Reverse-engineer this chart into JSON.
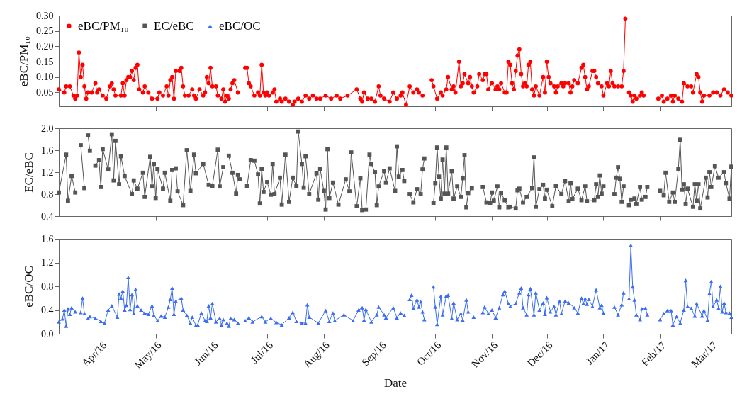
{
  "chart_data": [
    {
      "type": "line",
      "ylabel": "eBC/PM₁₀",
      "xlim": [
        "2016-03-09",
        "2017-03-12"
      ],
      "ylim": [
        0.005,
        0.3
      ],
      "xticks": [
        {
          "value": "2016-04-01",
          "label": null
        },
        {
          "value": "2016-05-01",
          "label": null
        },
        {
          "value": "2016-06-01",
          "label": null
        },
        {
          "value": "2016-07-01",
          "label": null
        },
        {
          "value": "2016-08-01",
          "label": null
        },
        {
          "value": "2016-09-01",
          "label": null
        },
        {
          "value": "2016-10-01",
          "label": null
        },
        {
          "value": "2016-11-01",
          "label": null
        },
        {
          "value": "2016-12-01",
          "label": null
        },
        {
          "value": "2017-01-01",
          "label": null
        },
        {
          "value": "2017-02-01",
          "label": null
        },
        {
          "value": "2017-03-01",
          "label": null
        }
      ],
      "yticks": [
        0.05,
        {
          "value": 0.1,
          "label": "0.10"
        },
        0.15,
        {
          "value": 0.2,
          "label": "0.20"
        },
        0.25,
        {
          "value": 0.3,
          "label": "0.30"
        }
      ],
      "tick_labels": "y",
      "legend": "top left",
      "marker": "circle",
      "line_style": "solid",
      "series": [
        {
          "name": "eBC/PM₁₀",
          "color": "#ff0000",
          "x": [
            "2016-03-09",
            "2016-03-12",
            "2016-03-13",
            "2016-03-15",
            "2016-03-17",
            "2016-03-18",
            "2016-03-19",
            "2016-03-20",
            "2016-03-21",
            "2016-03-22",
            "2016-03-23",
            "2016-03-24",
            "2016-03-25",
            "2016-03-27",
            "2016-03-29",
            "2016-03-30",
            "2016-03-31",
            "2016-04-02",
            "2016-04-04",
            "2016-04-06",
            "2016-04-07",
            "2016-04-08",
            "2016-04-09",
            "2016-04-12",
            "2016-04-13",
            "2016-04-14",
            "2016-04-15",
            "2016-04-16",
            "2016-04-17",
            "2016-04-18",
            "2016-04-19",
            "2016-04-20",
            "2016-04-21",
            "2016-04-22",
            "2016-04-24",
            "2016-04-25",
            "2016-04-27",
            "2016-04-29",
            "2016-05-02",
            "2016-05-03",
            "2016-05-05",
            "2016-05-07",
            "2016-05-08",
            "2016-05-09",
            "2016-05-10",
            "2016-05-11",
            "2016-05-12",
            "2016-05-14",
            "2016-05-15",
            "2016-05-16",
            "2016-05-17",
            "2016-05-19",
            "2016-05-21",
            "2016-05-22",
            "2016-05-23",
            "2016-05-25",
            "2016-05-27",
            "2016-05-28",
            "2016-05-29",
            "2016-05-30",
            "2016-05-31",
            "2016-06-01",
            "2016-06-03",
            "2016-06-04",
            "2016-06-06",
            "2016-06-07",
            "2016-06-08",
            "2016-06-09",
            "2016-06-10",
            "2016-06-11",
            "2016-06-12",
            "2016-06-13",
            "2016-06-15",
            "2016-06-17",
            "2016-06-19",
            "2016-06-20",
            "2016-06-21",
            "2016-06-22",
            "2016-06-24",
            "2016-06-26",
            "2016-06-27",
            "2016-06-28",
            "2016-06-29",
            "2016-06-30",
            "2016-07-01",
            "2016-07-02",
            "2016-07-04",
            "2016-07-05",
            "2016-07-06",
            "2016-07-08",
            "2016-07-09",
            "2016-07-11",
            "2016-07-13",
            "2016-07-15",
            "2016-07-16",
            "2016-07-18",
            "2016-07-20",
            "2016-07-22",
            "2016-07-24",
            "2016-07-26",
            "2016-07-28",
            "2016-07-30",
            "2016-08-02",
            "2016-08-05",
            "2016-08-08",
            "2016-08-10",
            "2016-08-14",
            "2016-08-19",
            "2016-08-21",
            "2016-08-22",
            "2016-08-23",
            "2016-08-25",
            "2016-08-27",
            "2016-08-29",
            "2016-08-31",
            "2016-09-01",
            "2016-09-03",
            "2016-09-06",
            "2016-09-08",
            "2016-09-10",
            "2016-09-12",
            "2016-09-13",
            "2016-09-15",
            "2016-09-17",
            "2016-09-19",
            "2016-09-21",
            "2016-09-22",
            "2016-09-24",
            "2016-09-27",
            "2016-09-29",
            "2016-09-30",
            "2016-10-02",
            "2016-10-04",
            "2016-10-05",
            "2016-10-07",
            "2016-10-08",
            "2016-10-10",
            "2016-10-11",
            "2016-10-12",
            "2016-10-14",
            "2016-10-15",
            "2016-10-16",
            "2016-10-17",
            "2016-10-19",
            "2016-10-20",
            "2016-10-21",
            "2016-10-22",
            "2016-10-24",
            "2016-10-25",
            "2016-10-27",
            "2016-10-28",
            "2016-10-29",
            "2016-10-30",
            "2016-11-01",
            "2016-11-03",
            "2016-11-04",
            "2016-11-05",
            "2016-11-06",
            "2016-11-08",
            "2016-11-09",
            "2016-11-10",
            "2016-11-11",
            "2016-11-12",
            "2016-11-13",
            "2016-11-14",
            "2016-11-15",
            "2016-11-16",
            "2016-11-17",
            "2016-11-18",
            "2016-11-19",
            "2016-11-20",
            "2016-11-21",
            "2016-11-22",
            "2016-11-23",
            "2016-11-24",
            "2016-11-25",
            "2016-11-27",
            "2016-11-29",
            "2016-11-30",
            "2016-12-01",
            "2016-12-02",
            "2016-12-03",
            "2016-12-05",
            "2016-12-06",
            "2016-12-07",
            "2016-12-09",
            "2016-12-10",
            "2016-12-11",
            "2016-12-13",
            "2016-12-14",
            "2016-12-15",
            "2016-12-16",
            "2016-12-18",
            "2016-12-20",
            "2016-12-21",
            "2016-12-22",
            "2016-12-23",
            "2016-12-24",
            "2016-12-26",
            "2016-12-27",
            "2016-12-28",
            "2016-12-29",
            "2016-12-31",
            "2017-01-01",
            "2017-01-03",
            "2017-01-04",
            "2017-01-05",
            "2017-01-06",
            "2017-01-07",
            "2017-01-09",
            "2017-01-11",
            "2017-01-12",
            "2017-01-13",
            "2017-01-14",
            "2017-01-15",
            "2017-01-16",
            "2017-01-17",
            "2017-01-18",
            "2017-01-19",
            "2017-01-21",
            "2017-01-22",
            "2017-01-23",
            "2017-01-27",
            "2017-01-31",
            "2017-02-02",
            "2017-02-03",
            "2017-02-05",
            "2017-02-07",
            "2017-02-08",
            "2017-02-09",
            "2017-02-11",
            "2017-02-13",
            "2017-02-14",
            "2017-02-16",
            "2017-02-18",
            "2017-02-19",
            "2017-02-21",
            "2017-02-22",
            "2017-02-23",
            "2017-02-24",
            "2017-02-25",
            "2017-02-28",
            "2017-03-02",
            "2017-03-04",
            "2017-03-06",
            "2017-03-08",
            "2017-03-10",
            "2017-03-12"
          ],
          "values": [
            0.06,
            0.05,
            0.07,
            0.07,
            0.04,
            0.03,
            0.04,
            0.18,
            0.1,
            0.14,
            0.07,
            0.03,
            0.05,
            0.05,
            0.08,
            0.05,
            0.06,
            0.04,
            0.03,
            0.07,
            0.08,
            0.06,
            0.04,
            0.04,
            0.08,
            0.04,
            0.09,
            0.1,
            0.1,
            0.12,
            0.09,
            0.13,
            0.14,
            0.06,
            0.05,
            0.07,
            0.05,
            0.03,
            0.03,
            0.05,
            0.04,
            0.07,
            0.04,
            0.09,
            0.1,
            0.03,
            0.12,
            0.12,
            0.13,
            0.07,
            0.04,
            0.04,
            0.06,
            0.04,
            0.03,
            0.06,
            0.04,
            0.05,
            0.1,
            0.08,
            0.13,
            0.07,
            0.07,
            0.04,
            0.03,
            0.06,
            0.02,
            0.04,
            0.03,
            0.06,
            0.08,
            0.09,
            0.05,
            null,
            0.13,
            0.13,
            0.08,
            0.07,
            0.04,
            0.05,
            0.04,
            0.14,
            0.05,
            0.04,
            0.05,
            0.04,
            0.05,
            0.06,
            0.02,
            0.03,
            0.02,
            0.03,
            0.02,
            0.01,
            0.02,
            0.03,
            0.02,
            0.04,
            0.03,
            0.04,
            0.03,
            0.03,
            0.04,
            0.03,
            0.04,
            0.03,
            0.04,
            0.06,
            0.03,
            0.02,
            0.05,
            0.03,
            0.03,
            0.02,
            0.07,
            0.04,
            0.03,
            0.02,
            0.05,
            0.03,
            0.04,
            0.05,
            0.01,
            0.07,
            0.05,
            0.06,
            0.05,
            0.04,
            null,
            0.09,
            0.07,
            0.03,
            0.05,
            0.04,
            0.06,
            0.1,
            0.06,
            0.07,
            0.05,
            0.15,
            0.07,
            0.08,
            0.11,
            0.08,
            0.1,
            0.07,
            0.05,
            0.07,
            0.11,
            0.09,
            0.11,
            0.11,
            0.06,
            0.08,
            0.06,
            0.07,
            0.06,
            0.08,
            0.05,
            0.05,
            0.15,
            0.14,
            0.08,
            0.06,
            0.12,
            0.17,
            0.19,
            0.11,
            0.07,
            0.08,
            0.07,
            0.14,
            0.15,
            0.06,
            0.04,
            0.07,
            0.04,
            0.1,
            0.05,
            0.15,
            0.1,
            0.08,
            0.07,
            0.05,
            0.07,
            0.08,
            0.07,
            0.08,
            0.08,
            0.05,
            0.07,
            0.09,
            0.08,
            0.13,
            0.14,
            0.1,
            0.06,
            0.07,
            0.12,
            0.12,
            0.1,
            0.08,
            0.07,
            0.04,
            0.08,
            0.07,
            0.12,
            0.08,
            0.07,
            0.07,
            0.07,
            0.12,
            0.29,
            null,
            0.05,
            0.04,
            0.02,
            0.04,
            0.03,
            0.04,
            0.05,
            0.04,
            null,
            0.03,
            0.04,
            0.02,
            0.03,
            0.04,
            0.02,
            0.04,
            0.03,
            0.02,
            0.08,
            0.07,
            0.07,
            0.05,
            0.11,
            0.1,
            0.05,
            0.02,
            0.04,
            0.04,
            0.05,
            0.05,
            0.04,
            0.06,
            0.05,
            0.04
          ]
        }
      ]
    },
    {
      "type": "line",
      "ylabel": "EC/eBC",
      "xlim": [
        "2016-03-09",
        "2017-03-12"
      ],
      "ylim": [
        0.4,
        2.0
      ],
      "xticks": [
        {
          "value": "2016-04-01",
          "label": null
        },
        {
          "value": "2016-05-01",
          "label": null
        },
        {
          "value": "2016-06-01",
          "label": null
        },
        {
          "value": "2016-07-01",
          "label": null
        },
        {
          "value": "2016-08-01",
          "label": null
        },
        {
          "value": "2016-09-01",
          "label": null
        },
        {
          "value": "2016-10-01",
          "label": null
        },
        {
          "value": "2016-11-01",
          "label": null
        },
        {
          "value": "2016-12-01",
          "label": null
        },
        {
          "value": "2017-01-01",
          "label": null
        },
        {
          "value": "2017-02-01",
          "label": null
        },
        {
          "value": "2017-03-01",
          "label": null
        }
      ],
      "yticks": [
        0.4,
        0.8,
        1.2,
        1.6,
        {
          "value": 2,
          "label": "2.0"
        }
      ],
      "tick_labels": "y",
      "marker": "square",
      "line_style": "solid",
      "series": [
        {
          "name": "EC/eBC",
          "color": "#555555",
          "x": [
            "2016-03-09",
            "2016-03-13",
            "2016-03-14",
            "2016-03-16",
            "2016-03-18",
            "2016-03-19",
            "2016-03-21",
            "2016-03-23",
            "2016-03-24",
            "2016-03-25",
            "2016-03-26",
            "2016-03-28",
            "2016-03-29",
            "2016-03-31",
            "2016-04-01",
            "2016-04-02",
            "2016-04-05",
            "2016-04-07",
            "2016-04-08",
            "2016-04-09",
            "2016-04-11",
            "2016-04-12",
            "2016-04-14",
            "2016-04-18",
            "2016-04-19",
            "2016-04-21",
            "2016-04-24",
            "2016-04-25",
            "2016-04-28",
            "2016-04-29",
            "2016-04-30",
            "2016-05-01",
            "2016-05-02",
            "2016-05-05",
            "2016-05-06",
            "2016-05-09",
            "2016-05-10",
            "2016-05-12",
            "2016-05-13",
            "2016-05-16",
            "2016-05-18",
            "2016-05-20",
            "2016-05-22",
            "2016-05-23",
            "2016-05-27",
            "2016-05-30",
            "2016-06-01",
            "2016-06-04",
            "2016-06-05",
            "2016-06-07",
            "2016-06-09",
            "2016-06-10",
            "2016-06-12",
            "2016-06-14",
            "2016-06-15",
            "2016-06-16",
            "2016-06-18",
            "2016-06-20",
            "2016-06-22",
            "2016-06-24",
            "2016-06-26",
            "2016-06-27",
            "2016-06-28",
            "2016-06-29",
            "2016-07-01",
            "2016-07-03",
            "2016-07-04",
            "2016-07-05",
            "2016-07-08",
            "2016-07-09",
            "2016-07-11",
            "2016-07-13",
            "2016-07-15",
            "2016-07-17",
            "2016-07-18",
            "2016-07-20",
            "2016-07-21",
            "2016-07-22",
            "2016-07-24",
            "2016-07-28",
            "2016-07-29",
            "2016-07-30",
            "2016-08-01",
            "2016-08-02",
            "2016-08-03",
            "2016-08-04",
            "2016-08-06",
            "2016-08-09",
            "2016-08-13",
            "2016-08-15",
            "2016-08-16",
            "2016-08-19",
            "2016-08-21",
            "2016-08-22",
            "2016-08-24",
            "2016-08-26",
            "2016-08-27",
            "2016-08-29",
            "2016-08-30",
            "2016-08-31",
            "2016-09-03",
            "2016-09-04",
            "2016-09-06",
            "2016-09-09",
            "2016-09-10",
            "2016-09-11",
            "2016-09-13",
            "2016-09-14",
            "2016-09-16",
            "2016-09-17",
            "2016-09-19",
            "2016-09-21",
            "2016-09-23",
            "2016-09-24",
            "2016-09-25",
            "2016-09-27",
            "2016-09-30",
            "2016-10-01",
            "2016-10-02",
            "2016-10-03",
            "2016-10-04",
            "2016-10-05",
            "2016-10-06",
            "2016-10-07",
            "2016-10-08",
            "2016-10-10",
            "2016-10-11",
            "2016-10-13",
            "2016-10-15",
            "2016-10-16",
            "2016-10-17",
            "2016-10-18",
            "2016-10-19",
            "2016-10-21",
            "2016-10-24",
            "2016-10-27",
            "2016-10-29",
            "2016-10-31",
            "2016-11-01",
            "2016-11-02",
            "2016-11-04",
            "2016-11-05",
            "2016-11-06",
            "2016-11-08",
            "2016-11-10",
            "2016-11-11",
            "2016-11-14",
            "2016-11-15",
            "2016-11-16",
            "2016-11-18",
            "2016-11-20",
            "2016-11-23",
            "2016-11-24",
            "2016-11-25",
            "2016-11-27",
            "2016-11-29",
            "2016-11-30",
            "2016-12-01",
            "2016-12-04",
            "2016-12-06",
            "2016-12-09",
            "2016-12-11",
            "2016-12-13",
            "2016-12-14",
            "2016-12-15",
            "2016-12-18",
            "2016-12-20",
            "2016-12-22",
            "2016-12-23",
            "2016-12-27",
            "2016-12-28",
            "2016-12-29",
            "2016-12-30",
            "2016-12-31",
            "2017-01-01",
            "2017-01-03",
            "2017-01-07",
            "2017-01-08",
            "2017-01-09",
            "2017-01-10",
            "2017-01-11",
            "2017-01-12",
            "2017-01-13",
            "2017-01-15",
            "2017-01-16",
            "2017-01-18",
            "2017-01-19",
            "2017-01-21",
            "2017-01-22",
            "2017-01-24",
            "2017-01-25",
            "2017-01-28",
            "2017-02-01",
            "2017-02-03",
            "2017-02-04",
            "2017-02-06",
            "2017-02-08",
            "2017-02-09",
            "2017-02-11",
            "2017-02-12",
            "2017-02-13",
            "2017-02-14",
            "2017-02-15",
            "2017-02-16",
            "2017-02-19",
            "2017-02-20",
            "2017-02-21",
            "2017-02-22",
            "2017-02-23",
            "2017-02-26",
            "2017-02-27",
            "2017-02-28",
            "2017-03-01",
            "2017-03-03",
            "2017-03-05",
            "2017-03-08",
            "2017-03-09",
            "2017-03-11",
            "2017-03-12"
          ],
          "values": [
            0.83,
            1.52,
            0.68,
            1.13,
            0.83,
            null,
            1.69,
            0.91,
            null,
            1.87,
            1.59,
            null,
            1.32,
            1.42,
            0.93,
            1.62,
            1.25,
            1.89,
            1.05,
            1.77,
            0.98,
            1.49,
            1.13,
            0.8,
            1.05,
            0.9,
            1.19,
            0.75,
            1.48,
            0.94,
            1.35,
            0.73,
            1.26,
            0.9,
            1.19,
            0.68,
            1.24,
            1.27,
            0.85,
            0.6,
            1.6,
            0.86,
            1.52,
            1.18,
            1.35,
            0.97,
            0.95,
            1.61,
            0.94,
            1.29,
            null,
            1.5,
            1.19,
            0.81,
            1.15,
            1.07,
            null,
            0.95,
            1.42,
            1.41,
            1.16,
            0.63,
            1.26,
            0.84,
            1.02,
            0.79,
            1.35,
            0.8,
            1.1,
            0.61,
            1.52,
            0.66,
            1.1,
            0.95,
            1.94,
            1.35,
            0.92,
            1.49,
            0.8,
            1.18,
            0.7,
            1.26,
            0.86,
            0.52,
            1.62,
            0.73,
            1.01,
            0.61,
            1.07,
            0.85,
            1.56,
            0.58,
            1.09,
            0.51,
            0.52,
            1.52,
            1.35,
            1.2,
            0.6,
            0.94,
            1.22,
            1.01,
            1.27,
            0.86,
            1.67,
            1.12,
            1.24,
            1.04,
            null,
            0.8,
            0.65,
            0.89,
            0.8,
            1.25,
            1.45,
            null,
            0.64,
            1.0,
            1.65,
            1.12,
            0.72,
            1.43,
            0.81,
            1.65,
            0.81,
            1.22,
            0.72,
            0.94,
            0.75,
            1.09,
            1.51,
            0.56,
            0.82,
            0.91,
            null,
            0.93,
            0.65,
            0.64,
            0.83,
            0.68,
            0.94,
            0.56,
            0.82,
            0.69,
            0.56,
            0.57,
            0.54,
            0.87,
            0.9,
            0.65,
            0.75,
            0.91,
            1.47,
            0.57,
            0.89,
            0.97,
            0.72,
            0.88,
            0.58,
            0.95,
            0.8,
            1.04,
            0.67,
            1.0,
            0.71,
            0.9,
            0.69,
            0.94,
            0.67,
            0.69,
            0.98,
            0.75,
            1.14,
            0.81,
            0.94,
            null,
            0.8,
            1.1,
            1.29,
            1.08,
            0.66,
            0.94,
            null,
            0.6,
            0.7,
            0.72,
            0.62,
            0.93,
            0.7,
            0.75,
            0.93,
            null,
            0.86,
            0.78,
            1.19,
            0.66,
            0.83,
            0.66,
            1.26,
            1.79,
            0.88,
            0.98,
            0.62,
            0.9,
            0.57,
            0.98,
            0.68,
            0.98,
            0.54,
            1.1,
            0.74,
            1.2,
            0.93,
            1.31,
            1.1,
            1.2,
            1.0,
            0.72,
            1.3
          ]
        }
      ]
    },
    {
      "type": "line",
      "xlabel": "Date",
      "ylabel": "eBC/OC",
      "xlim": [
        "2016-03-09",
        "2017-03-12"
      ],
      "ylim": [
        0,
        1.6
      ],
      "xticks": [
        {
          "value": "2016-04-01",
          "label": "Apr/16"
        },
        {
          "value": "2016-05-01",
          "label": "May/16"
        },
        {
          "value": "2016-06-01",
          "label": "Jun/16"
        },
        {
          "value": "2016-07-01",
          "label": "Jul/16"
        },
        {
          "value": "2016-08-01",
          "label": "Aug/16"
        },
        {
          "value": "2016-09-01",
          "label": "Sep/16"
        },
        {
          "value": "2016-10-01",
          "label": "Oct/16"
        },
        {
          "value": "2016-11-01",
          "label": "Nov/16"
        },
        {
          "value": "2016-12-01",
          "label": "Dec/16"
        },
        {
          "value": "2017-01-01",
          "label": "Jan/17"
        },
        {
          "value": "2017-02-01",
          "label": "Feb/17"
        },
        {
          "value": "2017-03-01",
          "label": "Mar/17"
        }
      ],
      "yticks": [
        {
          "value": 0,
          "label": "0.0"
        },
        0.4,
        0.8,
        1.2,
        1.6
      ],
      "marker": "triangle",
      "line_style": "solid",
      "series": [
        {
          "name": "eBC/OC",
          "color": "#3a6df0",
          "x": [
            "2016-03-09",
            "2016-03-11",
            "2016-03-12",
            "2016-03-13",
            "2016-03-14",
            "2016-03-15",
            "2016-03-16",
            "2016-03-18",
            "2016-03-19",
            "2016-03-21",
            "2016-03-22",
            "2016-03-23",
            "2016-03-24",
            "2016-03-25",
            "2016-03-26",
            "2016-03-29",
            "2016-04-01",
            "2016-04-03",
            "2016-04-05",
            "2016-04-07",
            "2016-04-10",
            "2016-04-11",
            "2016-04-12",
            "2016-04-13",
            "2016-04-14",
            "2016-04-15",
            "2016-04-16",
            "2016-04-17",
            "2016-04-18",
            "2016-04-19",
            "2016-04-20",
            "2016-04-21",
            "2016-04-23",
            "2016-04-25",
            "2016-04-27",
            "2016-04-29",
            "2016-04-30",
            "2016-05-02",
            "2016-05-04",
            "2016-05-06",
            "2016-05-08",
            "2016-05-09",
            "2016-05-10",
            "2016-05-11",
            "2016-05-12",
            "2016-05-15",
            "2016-05-16",
            "2016-05-18",
            "2016-05-20",
            "2016-05-21",
            "2016-05-23",
            "2016-05-24",
            "2016-05-26",
            "2016-05-28",
            "2016-05-29",
            "2016-05-30",
            "2016-05-31",
            "2016-06-01",
            "2016-06-03",
            "2016-06-05",
            "2016-06-06",
            "2016-06-07",
            "2016-06-08",
            "2016-06-09",
            "2016-06-10",
            "2016-06-11",
            "2016-06-13",
            "2016-06-15",
            "2016-06-17",
            "2016-06-19",
            "2016-06-21",
            "2016-06-23",
            "2016-06-28",
            "2016-06-30",
            "2016-07-03",
            "2016-07-06",
            "2016-07-09",
            "2016-07-13",
            "2016-07-15",
            "2016-07-17",
            "2016-07-20",
            "2016-07-22",
            "2016-07-23",
            "2016-07-24",
            "2016-07-29",
            "2016-08-02",
            "2016-08-04",
            "2016-08-06",
            "2016-08-07",
            "2016-08-12",
            "2016-08-17",
            "2016-08-20",
            "2016-08-22",
            "2016-08-23",
            "2016-08-24",
            "2016-08-27",
            "2016-08-30",
            "2016-08-31",
            "2016-09-03",
            "2016-09-04",
            "2016-09-08",
            "2016-09-10",
            "2016-09-12",
            "2016-09-14",
            "2016-09-16",
            "2016-09-17",
            "2016-09-18",
            "2016-09-19",
            "2016-09-21",
            "2016-09-22",
            "2016-09-23",
            "2016-09-24",
            "2016-09-25",
            "2016-09-27",
            "2016-09-30",
            "2016-10-01",
            "2016-10-02",
            "2016-10-04",
            "2016-10-05",
            "2016-10-07",
            "2016-10-08",
            "2016-10-10",
            "2016-10-11",
            "2016-10-13",
            "2016-10-15",
            "2016-10-16",
            "2016-10-18",
            "2016-10-19",
            "2016-10-20",
            "2016-10-22",
            "2016-10-24",
            "2016-10-27",
            "2016-10-28",
            "2016-10-30",
            "2016-11-01",
            "2016-11-03",
            "2016-11-05",
            "2016-11-07",
            "2016-11-08",
            "2016-11-10",
            "2016-11-11",
            "2016-11-14",
            "2016-11-16",
            "2016-11-17",
            "2016-11-18",
            "2016-11-20",
            "2016-11-21",
            "2016-11-22",
            "2016-11-24",
            "2016-11-25",
            "2016-11-27",
            "2016-11-29",
            "2016-11-30",
            "2016-12-01",
            "2016-12-03",
            "2016-12-05",
            "2016-12-06",
            "2016-12-08",
            "2016-12-09",
            "2016-12-11",
            "2016-12-13",
            "2016-12-16",
            "2016-12-18",
            "2016-12-20",
            "2016-12-21",
            "2016-12-22",
            "2016-12-23",
            "2016-12-24",
            "2016-12-26",
            "2016-12-28",
            "2016-12-30",
            "2016-12-31",
            "2017-01-01",
            "2017-01-03",
            "2017-01-07",
            "2017-01-09",
            "2017-01-11",
            "2017-01-12",
            "2017-01-13",
            "2017-01-15",
            "2017-01-16",
            "2017-01-17",
            "2017-01-18",
            "2017-01-19",
            "2017-01-21",
            "2017-01-22",
            "2017-01-24",
            "2017-01-25",
            "2017-01-28",
            "2017-02-01",
            "2017-02-03",
            "2017-02-05",
            "2017-02-07",
            "2017-02-08",
            "2017-02-10",
            "2017-02-12",
            "2017-02-14",
            "2017-02-15",
            "2017-02-16",
            "2017-02-18",
            "2017-02-20",
            "2017-02-21",
            "2017-02-24",
            "2017-02-25",
            "2017-02-27",
            "2017-02-28",
            "2017-03-01",
            "2017-03-02",
            "2017-03-04",
            "2017-03-05",
            "2017-03-06",
            "2017-03-07",
            "2017-03-08",
            "2017-03-09",
            "2017-03-11",
            "2017-03-12"
          ],
          "values": [
            0.2,
            0.25,
            0.4,
            0.13,
            0.42,
            0.33,
            0.44,
            0.37,
            null,
            0.36,
            0.6,
            0.34,
            null,
            0.26,
            0.29,
            0.26,
            0.21,
            0.18,
            0.4,
            0.47,
            0.28,
            0.67,
            0.6,
            0.72,
            0.4,
            0.48,
            0.95,
            0.41,
            0.66,
            0.34,
            0.75,
            0.47,
            0.4,
            0.35,
            0.33,
            0.47,
            0.31,
            0.22,
            0.3,
            0.28,
            0.45,
            0.58,
            0.77,
            0.33,
            0.55,
            0.6,
            0.4,
            0.31,
            0.18,
            0.28,
            0.14,
            0.15,
            0.35,
            0.22,
            0.21,
            0.47,
            0.27,
            0.51,
            0.2,
            0.26,
            0.15,
            0.24,
            null,
            0.18,
            0.13,
            0.26,
            0.24,
            0.18,
            null,
            0.22,
            0.27,
            0.2,
            0.29,
            0.2,
            0.26,
            0.19,
            0.15,
            0.27,
            0.36,
            0.21,
            0.18,
            0.18,
            0.49,
            0.28,
            0.18,
            0.39,
            0.21,
            0.35,
            0.22,
            0.32,
            0.22,
            0.4,
            0.44,
            0.23,
            0.41,
            0.2,
            0.32,
            0.45,
            0.32,
            0.27,
            0.44,
            0.27,
            0.35,
            0.31,
            null,
            0.58,
            0.65,
            0.43,
            0.57,
            0.45,
            0.54,
            0.37,
            0.24,
            null,
            0.79,
            0.45,
            0.16,
            0.63,
            0.32,
            0.64,
            0.65,
            0.26,
            0.52,
            0.24,
            0.34,
            0.23,
            0.57,
            0.37,
            null,
            0.28,
            null,
            0.36,
            0.45,
            0.34,
            0.4,
            0.27,
            0.44,
            0.66,
            0.72,
            0.51,
            0.46,
            0.51,
            0.69,
            0.77,
            0.44,
            0.32,
            0.66,
            0.76,
            0.32,
            0.69,
            0.4,
            0.52,
            0.33,
            0.61,
            0.37,
            0.46,
            0.32,
            0.55,
            0.34,
            0.55,
            0.52,
            0.44,
            0.35,
            0.6,
            0.51,
            0.59,
            0.5,
            0.58,
            0.46,
            0.74,
            0.44,
            0.48,
            0.35,
            null,
            0.45,
            0.32,
            0.49,
            0.69,
            null,
            0.59,
            1.49,
            0.79,
            0.57,
            0.32,
            0.24,
            0.42,
            0.43,
            0.32,
            null,
            0.24,
            0.34,
            0.39,
            0.39,
            0.15,
            0.29,
            0.18,
            0.4,
            0.9,
            0.46,
            0.43,
            0.3,
            0.51,
            0.3,
            0.39,
            0.23,
            0.68,
            0.88,
            0.46,
            0.57,
            0.43,
            0.8,
            0.37,
            0.52,
            0.36,
            0.35,
            0.28
          ]
        }
      ]
    }
  ]
}
